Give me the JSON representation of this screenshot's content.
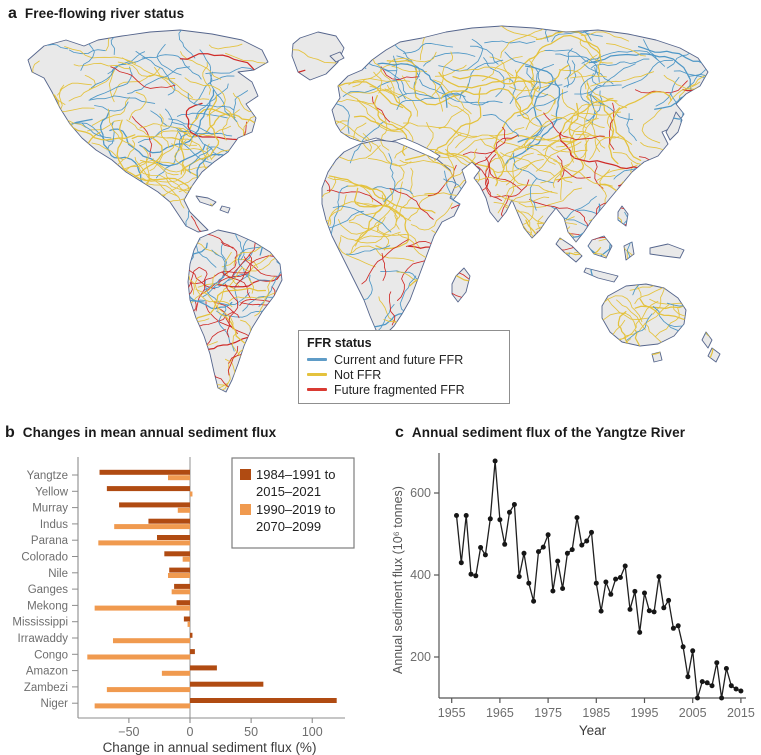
{
  "figure": {
    "panels": {
      "a": {
        "letter": "a",
        "title": "Free-flowing river status",
        "legend": {
          "title": "FFR status",
          "items": [
            {
              "name": "current-future-ffr",
              "label": "Current and future FFR",
              "color": "#5f9cc7"
            },
            {
              "name": "not-ffr",
              "label": "Not FFR",
              "color": "#e4c23d"
            },
            {
              "name": "future-fragmented-ffr",
              "label": "Future fragmented FFR",
              "color": "#d93a32"
            }
          ]
        },
        "map": {
          "land_color": "#e9e9e9",
          "coast_color": "#55658c",
          "river_colors": {
            "blue": "#4e97c6",
            "yellow": "#e4c23d",
            "red": "#cf2b28"
          }
        }
      },
      "b": {
        "letter": "b",
        "title": "Changes in mean annual sediment flux"
      },
      "c": {
        "letter": "c",
        "title": "Annual sediment flux of the Yangtze River"
      }
    }
  },
  "chart_data": [
    {
      "type": "bar",
      "panel": "b",
      "title": "Changes in mean annual sediment flux",
      "orientation": "horizontal",
      "categories": [
        "Yangtze",
        "Yellow",
        "Murray",
        "Indus",
        "Parana",
        "Colorado",
        "Nile",
        "Ganges",
        "Mekong",
        "Mississippi",
        "Irrawaddy",
        "Congo",
        "Amazon",
        "Zambezi",
        "Niger"
      ],
      "series": [
        {
          "name": "1984–1991 to 2015–2021",
          "label_lines": [
            "1984–1991 to",
            "2015–2021"
          ],
          "color": "#b04b12",
          "values": [
            -74,
            -68,
            -58,
            -34,
            -27,
            -21,
            -17,
            -13,
            -11,
            -5,
            2,
            4,
            22,
            60,
            120
          ]
        },
        {
          "name": "1990–2019 to 2070–2099",
          "label_lines": [
            "1990–2019 to",
            "2070–2099"
          ],
          "color": "#f09a4f",
          "values": [
            -18,
            2,
            -10,
            -62,
            -75,
            -6,
            -18,
            -15,
            -78,
            -2,
            -63,
            -84,
            -23,
            -68,
            -78
          ]
        }
      ],
      "xlabel": "Change in annual sediment flux (%)",
      "xticks": [
        -50,
        0,
        50,
        100
      ],
      "xlim": [
        -92,
        127
      ],
      "legend_position": "top-right",
      "grid": false
    },
    {
      "type": "line",
      "panel": "c",
      "title": "Annual sediment flux of the Yangtze River",
      "xlabel": "Year",
      "ylabel": "Annual sediment flux (10⁶ tonnes)",
      "xticks": [
        1955,
        1965,
        1975,
        1985,
        1995,
        2005,
        2015
      ],
      "yticks": [
        200,
        400,
        600
      ],
      "xlim": [
        1952.5,
        2017
      ],
      "ylim": [
        95,
        700
      ],
      "marker": "circle",
      "line_color": "#1f1f1f",
      "x": [
        1956,
        1957,
        1958,
        1959,
        1960,
        1961,
        1962,
        1963,
        1964,
        1965,
        1966,
        1967,
        1968,
        1969,
        1970,
        1971,
        1972,
        1973,
        1974,
        1975,
        1976,
        1977,
        1978,
        1979,
        1980,
        1981,
        1982,
        1983,
        1984,
        1985,
        1986,
        1987,
        1988,
        1989,
        1990,
        1991,
        1992,
        1993,
        1994,
        1995,
        1996,
        1997,
        1998,
        1999,
        2000,
        2001,
        2002,
        2003,
        2004,
        2005,
        2006,
        2007,
        2008,
        2009,
        2010,
        2011,
        2012,
        2013,
        2014,
        2015
      ],
      "y": [
        545,
        430,
        545,
        402,
        398,
        467,
        449,
        537,
        678,
        535,
        475,
        553,
        572,
        396,
        453,
        380,
        336,
        457,
        468,
        498,
        361,
        434,
        367,
        453,
        462,
        540,
        473,
        483,
        504,
        380,
        312,
        383,
        353,
        390,
        394,
        422,
        316,
        360,
        260,
        356,
        313,
        310,
        396,
        320,
        338,
        270,
        276,
        225,
        152,
        215,
        100,
        140,
        137,
        130,
        186,
        100,
        172,
        130,
        122,
        117
      ]
    }
  ]
}
